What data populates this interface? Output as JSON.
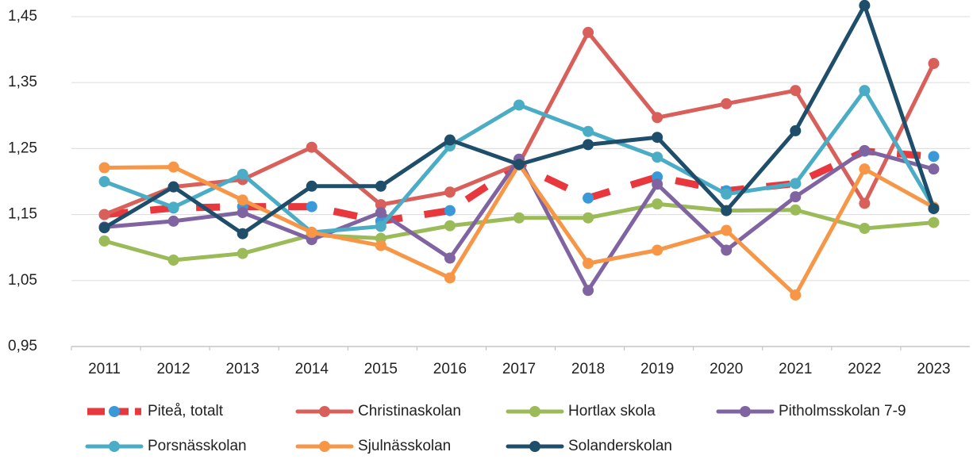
{
  "chart_data": {
    "type": "line",
    "categories": [
      "2011",
      "2012",
      "2013",
      "2014",
      "2015",
      "2016",
      "2017",
      "2018",
      "2019",
      "2020",
      "2021",
      "2022",
      "2023"
    ],
    "series": [
      {
        "name": "Piteå, totalt",
        "color": "#e8383d",
        "marker_color": "#3a9ad9",
        "dashed": true,
        "values": [
          1.15,
          1.16,
          1.162,
          1.162,
          1.14,
          1.156,
          1.225,
          1.175,
          1.207,
          1.186,
          1.197,
          1.246,
          1.238
        ]
      },
      {
        "name": "Christinaskolan",
        "color": "#d9605a",
        "values": [
          1.15,
          1.192,
          1.203,
          1.252,
          1.165,
          1.184,
          1.227,
          1.426,
          1.297,
          1.318,
          1.338,
          1.167,
          1.379
        ]
      },
      {
        "name": "Hortlax skola",
        "color": "#9bbb59",
        "values": [
          1.11,
          1.081,
          1.091,
          1.119,
          1.114,
          1.133,
          1.145,
          1.145,
          1.166,
          1.156,
          1.157,
          1.129,
          1.138
        ]
      },
      {
        "name": "Pitholmsskolan 7-9",
        "color": "#8064a2",
        "values": [
          1.131,
          1.14,
          1.153,
          1.112,
          1.153,
          1.084,
          1.234,
          1.035,
          1.196,
          1.096,
          1.177,
          1.247,
          1.219
        ]
      },
      {
        "name": "Porsnässkolan",
        "color": "#4bacc6",
        "values": [
          1.2,
          1.161,
          1.211,
          1.123,
          1.132,
          1.254,
          1.316,
          1.276,
          1.237,
          1.181,
          1.197,
          1.338,
          1.161
        ]
      },
      {
        "name": "Sjulnässkolan",
        "color": "#f79646",
        "values": [
          1.221,
          1.222,
          1.172,
          1.123,
          1.103,
          1.054,
          1.226,
          1.076,
          1.096,
          1.126,
          1.028,
          1.219,
          1.161
        ]
      },
      {
        "name": "Solanderskolan",
        "color": "#1f4e6b",
        "values": [
          1.13,
          1.192,
          1.121,
          1.193,
          1.193,
          1.263,
          1.226,
          1.256,
          1.267,
          1.156,
          1.277,
          1.467,
          1.159
        ]
      }
    ],
    "ylim": [
      0.95,
      1.48
    ],
    "yticks": [
      {
        "value": 0.95,
        "label": "0,95"
      },
      {
        "value": 1.05,
        "label": "1,05"
      },
      {
        "value": 1.15,
        "label": "1,15"
      },
      {
        "value": 1.25,
        "label": "1,25"
      },
      {
        "value": 1.35,
        "label": "1,35"
      },
      {
        "value": 1.45,
        "label": "1,45"
      }
    ],
    "grid": true
  }
}
